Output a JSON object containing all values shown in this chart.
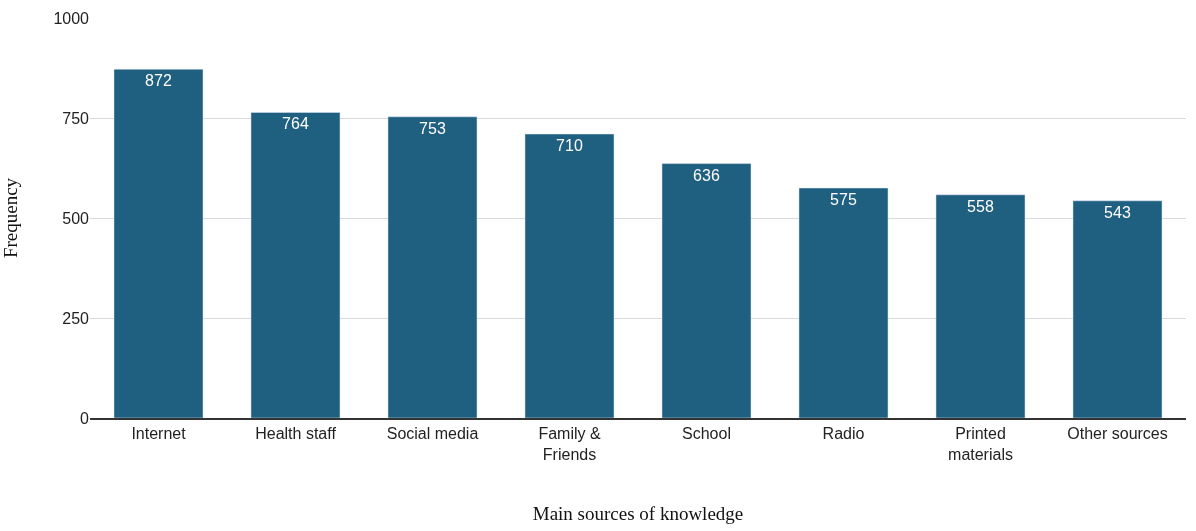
{
  "chart_data": {
    "type": "bar",
    "xlabel": "Main sources of knowledge",
    "ylabel": "Frequency",
    "categories": [
      "Internet",
      "Health staff",
      "Social media",
      "Family & Friends",
      "School",
      "Radio",
      "Printed materials",
      "Other sources"
    ],
    "values": [
      872,
      764,
      753,
      710,
      636,
      575,
      558,
      543
    ],
    "color": "#1f5f80",
    "ylim": [
      0,
      1000
    ],
    "yticks": [
      0,
      250,
      500,
      750,
      1000
    ],
    "grid": "y",
    "data_labels": true
  }
}
